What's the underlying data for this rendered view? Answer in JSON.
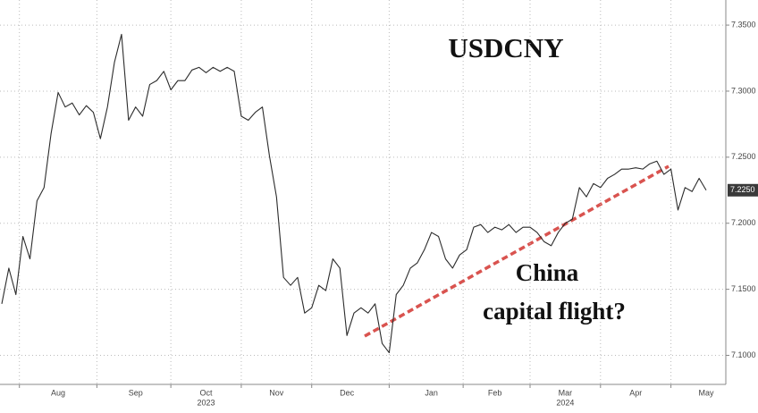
{
  "chart_data": {
    "type": "line",
    "title": "USDCNY",
    "annotation": [
      "China",
      "capital flight?"
    ],
    "categories": [
      null,
      null,
      null,
      null,
      null,
      null,
      null,
      null,
      "Aug",
      null,
      null,
      null,
      null,
      null,
      null,
      null,
      null,
      null,
      null,
      "Sep",
      null,
      null,
      null,
      null,
      null,
      null,
      null,
      null,
      null,
      "Oct",
      null,
      null,
      null,
      null,
      null,
      null,
      null,
      null,
      null,
      "Nov",
      null,
      null,
      null,
      null,
      null,
      null,
      null,
      null,
      null,
      "Dec",
      null,
      null,
      null,
      null,
      null,
      null,
      null,
      null,
      null,
      null,
      null,
      "Jan",
      null,
      null,
      null,
      null,
      null,
      null,
      null,
      null,
      "Feb",
      null,
      null,
      null,
      null,
      null,
      null,
      null,
      null,
      null,
      "Mar",
      null,
      null,
      null,
      null,
      null,
      null,
      null,
      null,
      null,
      "Apr",
      null,
      null,
      null,
      null,
      null,
      null,
      null,
      null,
      null,
      "May"
    ],
    "category_years": [
      null,
      null,
      null,
      null,
      null,
      null,
      null,
      null,
      null,
      null,
      null,
      null,
      null,
      null,
      null,
      null,
      null,
      null,
      null,
      null,
      null,
      null,
      null,
      null,
      null,
      null,
      null,
      null,
      null,
      "2023",
      null,
      null,
      null,
      null,
      null,
      null,
      null,
      null,
      null,
      null,
      null,
      null,
      null,
      null,
      null,
      null,
      null,
      null,
      null,
      null,
      null,
      null,
      null,
      null,
      null,
      null,
      null,
      null,
      null,
      null,
      null,
      null,
      null,
      null,
      null,
      null,
      null,
      null,
      null,
      null,
      null,
      null,
      null,
      null,
      null,
      null,
      null,
      null,
      null,
      null,
      "2024",
      null,
      null,
      null,
      null,
      null,
      null,
      null,
      null,
      null,
      null,
      null,
      null,
      null,
      null,
      null,
      null,
      null,
      null,
      null,
      null
    ],
    "series": [
      {
        "name": "USDCNY",
        "color": "#2b2b2b",
        "values": [
          7.139,
          7.166,
          7.146,
          7.19,
          7.173,
          7.217,
          7.227,
          7.268,
          7.299,
          7.288,
          7.291,
          7.282,
          7.289,
          7.284,
          7.264,
          7.288,
          7.322,
          7.343,
          7.278,
          7.288,
          7.281,
          7.305,
          7.308,
          7.315,
          7.301,
          7.308,
          7.308,
          7.316,
          7.318,
          7.314,
          7.318,
          7.315,
          7.318,
          7.315,
          7.281,
          7.278,
          7.284,
          7.288,
          7.251,
          7.22,
          7.159,
          7.153,
          7.159,
          7.132,
          7.136,
          7.153,
          7.149,
          7.173,
          7.166,
          7.115,
          7.132,
          7.136,
          7.132,
          7.139,
          7.109,
          7.102,
          7.146,
          7.153,
          7.166,
          7.17,
          7.18,
          7.193,
          7.19,
          7.173,
          7.166,
          7.176,
          7.18,
          7.197,
          7.199,
          7.193,
          7.197,
          7.195,
          7.199,
          7.193,
          7.197,
          7.197,
          7.193,
          7.186,
          7.183,
          7.193,
          7.2,
          7.203,
          7.227,
          7.22,
          7.23,
          7.227,
          7.234,
          7.237,
          7.241,
          7.241,
          7.242,
          7.241,
          7.245,
          7.247,
          7.237,
          7.241,
          7.21,
          7.227,
          7.224,
          7.234,
          7.225
        ],
        "value_labels": [
          null,
          null,
          null,
          null,
          null,
          null,
          null,
          null,
          null,
          null,
          null,
          null,
          null,
          null,
          null,
          null,
          null,
          null,
          null,
          null,
          null,
          null,
          null,
          null,
          null,
          null,
          null,
          null,
          null,
          null,
          null,
          null,
          null,
          null,
          null,
          null,
          null,
          null,
          null,
          null,
          null,
          null,
          null,
          null,
          null,
          null,
          null,
          null,
          null,
          null,
          null,
          null,
          null,
          null,
          null,
          null,
          null,
          null,
          null,
          null,
          null,
          null,
          null,
          null,
          null,
          null,
          null,
          null,
          null,
          null,
          null,
          null,
          null,
          null,
          null,
          null,
          null,
          null,
          null,
          null,
          null,
          null,
          null,
          null,
          null,
          null,
          null,
          null,
          null,
          null,
          null,
          null,
          null,
          null,
          null,
          null,
          null,
          null,
          null,
          null,
          "7.2250"
        ]
      }
    ],
    "ylim": [
      7.078,
      7.369
    ],
    "yticks": [
      {
        "value": 7.1,
        "label": "7.1000"
      },
      {
        "value": 7.15,
        "label": "7.1500"
      },
      {
        "value": 7.2,
        "label": "7.2000"
      },
      {
        "value": 7.25,
        "label": "7.2500"
      },
      {
        "value": 7.3,
        "label": "7.3000"
      },
      {
        "value": 7.35,
        "label": "7.3500"
      }
    ],
    "grid": true,
    "y_axis_side": "right"
  }
}
